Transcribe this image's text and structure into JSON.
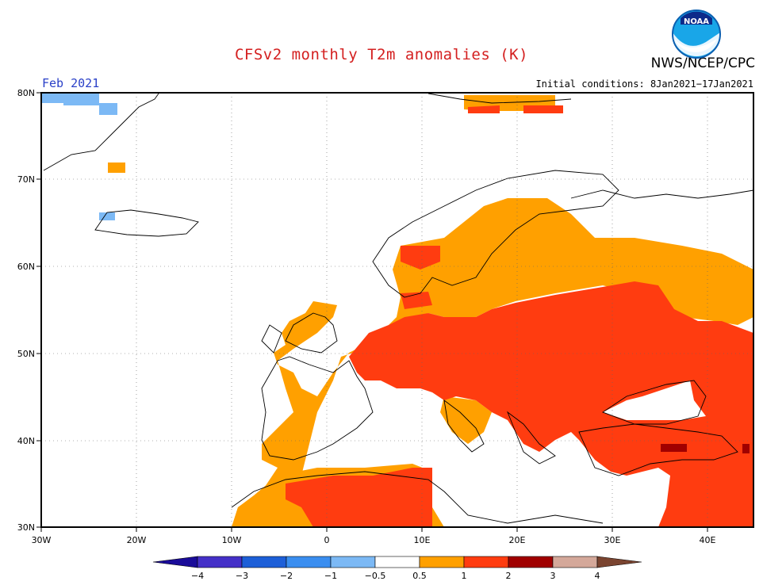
{
  "header": {
    "title": "CFSv2 monthly T2m anomalies (K)",
    "agency": "NWS/NCEP/CPC",
    "logo_text": "NOAA",
    "month": "Feb 2021",
    "initial_conditions": "Initial conditions: 8Jan2021−17Jan2021"
  },
  "map": {
    "region": "Europe",
    "lon_range": [
      -30,
      45
    ],
    "lat_range": [
      30,
      80
    ],
    "x_ticks": [
      "30W",
      "20W",
      "10W",
      "0",
      "10E",
      "20E",
      "30E",
      "40E"
    ],
    "y_ticks": [
      "30N",
      "40N",
      "50N",
      "60N",
      "70N",
      "80N"
    ],
    "grid": true
  },
  "colorbar": {
    "labels": [
      "−4",
      "−3",
      "−2",
      "−1",
      "−0.5",
      "0.5",
      "1",
      "2",
      "3",
      "4"
    ],
    "colors": [
      "#1a0c99",
      "#4430c8",
      "#1d5fd8",
      "#3a8ef0",
      "#7cb9f5",
      "#ffffff",
      "#ffa000",
      "#ff3c10",
      "#a00000",
      "#d4a89a",
      "#7a4430"
    ]
  }
}
